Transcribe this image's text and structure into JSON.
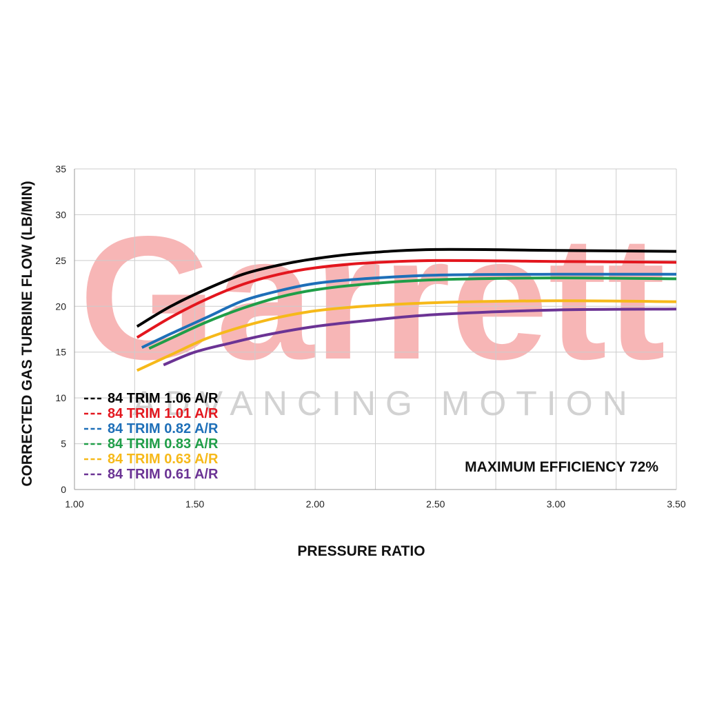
{
  "watermark": {
    "brand": "Garrett",
    "tagline": "ADVANCING MOTION"
  },
  "chart_data": {
    "type": "line",
    "xlabel": "PRESSURE RATIO",
    "ylabel": "CORRECTED GAS TURBINE FLOW (LB/MIN)",
    "xlim": [
      1.0,
      3.5
    ],
    "ylim": [
      0,
      35
    ],
    "x_ticks": [
      "1.00",
      "1.50",
      "2.00",
      "2.50",
      "3.00",
      "3.50"
    ],
    "y_ticks": [
      "0",
      "5",
      "10",
      "15",
      "20",
      "25",
      "30",
      "35"
    ],
    "grid": true,
    "legend_position": "bottom-left",
    "annotation": "MAXIMUM EFFICIENCY 72%",
    "series": [
      {
        "name": "84 TRIM 1.06 A/R",
        "color": "#000000",
        "x": [
          1.26,
          1.4,
          1.55,
          1.7,
          1.85,
          2.0,
          2.2,
          2.5,
          3.0,
          3.5
        ],
        "y": [
          17.8,
          20.0,
          21.9,
          23.5,
          24.5,
          25.2,
          25.8,
          26.2,
          26.1,
          26.0
        ]
      },
      {
        "name": "84 TRIM 1.01 A/R",
        "color": "#e3161e",
        "x": [
          1.26,
          1.4,
          1.55,
          1.7,
          1.85,
          2.0,
          2.2,
          2.5,
          3.0,
          3.5
        ],
        "y": [
          16.6,
          18.8,
          20.8,
          22.4,
          23.5,
          24.2,
          24.7,
          25.0,
          24.9,
          24.8
        ]
      },
      {
        "name": "84 TRIM 0.82 A/R",
        "color": "#1e6fb8",
        "x": [
          1.28,
          1.4,
          1.55,
          1.7,
          1.85,
          2.0,
          2.2,
          2.5,
          3.0,
          3.5
        ],
        "y": [
          15.5,
          17.0,
          18.8,
          20.6,
          21.7,
          22.5,
          23.0,
          23.4,
          23.5,
          23.5
        ]
      },
      {
        "name": "84 TRIM 0.83 A/R",
        "color": "#1f9e48",
        "x": [
          1.31,
          1.4,
          1.55,
          1.7,
          1.85,
          2.0,
          2.2,
          2.5,
          3.0,
          3.5
        ],
        "y": [
          15.4,
          16.5,
          18.3,
          19.8,
          21.0,
          21.8,
          22.4,
          22.9,
          23.1,
          23.0
        ]
      },
      {
        "name": "84 TRIM 0.63 A/R",
        "color": "#f6b91a",
        "x": [
          1.26,
          1.4,
          1.55,
          1.7,
          1.85,
          2.0,
          2.2,
          2.5,
          3.0,
          3.5
        ],
        "y": [
          13.0,
          14.7,
          16.5,
          17.8,
          18.8,
          19.5,
          20.0,
          20.4,
          20.6,
          20.5
        ]
      },
      {
        "name": "84 TRIM 0.61 A/R",
        "color": "#6b3394",
        "x": [
          1.37,
          1.5,
          1.65,
          1.8,
          2.0,
          2.2,
          2.5,
          3.0,
          3.5
        ],
        "y": [
          13.6,
          15.0,
          16.0,
          16.9,
          17.8,
          18.4,
          19.1,
          19.6,
          19.7
        ]
      }
    ]
  }
}
